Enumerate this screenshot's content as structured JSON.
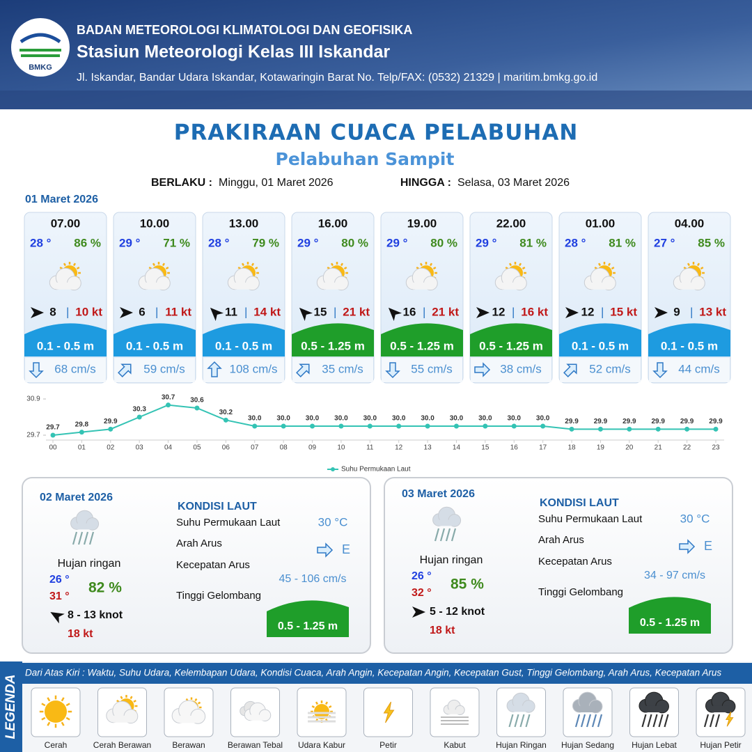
{
  "header": {
    "agency": "BADAN METEOROLOGI KLIMATOLOGI DAN GEOFISIKA",
    "station": "Stasiun Meteorologi Kelas III Iskandar",
    "address": "Jl. Iskandar, Bandar Udara Iskandar, Kotawaringin Barat No. Telp/FAX: (0532) 21329 | maritim.bmkg.go.id",
    "logo": "BMKG"
  },
  "title": "PRAKIRAAN CUACA PELABUHAN",
  "subtitle": "Pelabuhan Sampit",
  "validity": {
    "from_label": "BERLAKU :",
    "from": "Minggu, 01 Maret 2026",
    "to_label": "HINGGA :",
    "to": "Selasa, 03 Maret 2026"
  },
  "day1": {
    "date": "01 Maret 2026",
    "slots": [
      {
        "time": "07.00",
        "temp": "28 °",
        "humidity": "86 %",
        "wind": "8",
        "gust": "10 kt",
        "wind_dir": 0,
        "wave": "0.1 - 0.5 m",
        "wave_color": "#1e9be0",
        "current": "68 cm/s",
        "current_dir": 90
      },
      {
        "time": "10.00",
        "temp": "29 °",
        "humidity": "71 %",
        "wind": "6",
        "gust": "11 kt",
        "wind_dir": 0,
        "wave": "0.1 - 0.5 m",
        "wave_color": "#1e9be0",
        "current": "59 cm/s",
        "current_dir": -45
      },
      {
        "time": "13.00",
        "temp": "28 °",
        "humidity": "79 %",
        "wind": "11",
        "gust": "14 kt",
        "wind_dir": -135,
        "wave": "0.1 - 0.5 m",
        "wave_color": "#1e9be0",
        "current": "108 cm/s",
        "current_dir": -90
      },
      {
        "time": "16.00",
        "temp": "29 °",
        "humidity": "80 %",
        "wind": "15",
        "gust": "21 kt",
        "wind_dir": -135,
        "wave": "0.5 - 1.25 m",
        "wave_color": "#1f9e2a",
        "current": "35 cm/s",
        "current_dir": -45
      },
      {
        "time": "19.00",
        "temp": "29 °",
        "humidity": "80 %",
        "wind": "16",
        "gust": "21 kt",
        "wind_dir": -135,
        "wave": "0.5 - 1.25 m",
        "wave_color": "#1f9e2a",
        "current": "55 cm/s",
        "current_dir": 90
      },
      {
        "time": "22.00",
        "temp": "29 °",
        "humidity": "81 %",
        "wind": "12",
        "gust": "16 kt",
        "wind_dir": 0,
        "wave": "0.5 - 1.25 m",
        "wave_color": "#1f9e2a",
        "current": "38 cm/s",
        "current_dir": 0
      },
      {
        "time": "01.00",
        "temp": "28 °",
        "humidity": "81 %",
        "wind": "12",
        "gust": "15 kt",
        "wind_dir": 0,
        "wave": "0.1 - 0.5 m",
        "wave_color": "#1e9be0",
        "current": "52 cm/s",
        "current_dir": -45
      },
      {
        "time": "04.00",
        "temp": "27 °",
        "humidity": "85 %",
        "wind": "9",
        "gust": "13 kt",
        "wind_dir": 0,
        "wave": "0.1 - 0.5 m",
        "wave_color": "#1e9be0",
        "current": "44 cm/s",
        "current_dir": 90
      }
    ]
  },
  "chart_data": {
    "type": "line",
    "categories": [
      "00",
      "01",
      "02",
      "03",
      "04",
      "05",
      "06",
      "07",
      "08",
      "09",
      "10",
      "11",
      "12",
      "13",
      "14",
      "15",
      "16",
      "17",
      "18",
      "19",
      "20",
      "21",
      "22",
      "23"
    ],
    "series": [
      {
        "name": "Suhu Permukaan Laut",
        "color": "#34c3b4",
        "values": [
          29.7,
          29.8,
          29.9,
          30.3,
          30.7,
          30.6,
          30.2,
          30.0,
          30.0,
          30.0,
          30.0,
          30.0,
          30.0,
          30.0,
          30.0,
          30.0,
          30.0,
          30.0,
          29.9,
          29.9,
          29.9,
          29.9,
          29.9,
          29.9
        ],
        "value_labels": [
          "29.7",
          "29.8",
          "29.9",
          "30.3",
          "30.7",
          "30.6",
          "30.2",
          "30.0",
          "30.0",
          "30.0",
          "30.0",
          "30.0",
          "30.0",
          "30.0",
          "30.0",
          "30.0",
          "30.0",
          "30.0",
          "29.9",
          "29.9",
          "29.9",
          "29.9",
          "29.9",
          "29.9"
        ]
      }
    ],
    "ylim": [
      29.7,
      30.9
    ],
    "yticks": [
      29.7,
      30.9
    ],
    "legend": "bottom"
  },
  "panels": [
    {
      "date": "02 Maret 2026",
      "condition": "Hujan ringan",
      "temp_min": "26 °",
      "temp_max": "31 °",
      "humidity": "82 %",
      "wind": "8  - 13 knot",
      "wind_dir": -150,
      "gust": "18 kt",
      "sea_title": "KONDISI LAUT",
      "sst_label": "Suhu Permukaan Laut",
      "sst": "30 °C",
      "current_dir_label": "Arah Arus",
      "current_dir": "E",
      "current_speed_label": "Kecepatan Arus",
      "current_speed": "45  - 106 cm/s",
      "wave_label": "Tinggi Gelombang",
      "wave": "0.5 - 1.25 m"
    },
    {
      "date": "03 Maret 2026",
      "condition": "Hujan ringan",
      "temp_min": "26 °",
      "temp_max": "32 °",
      "humidity": "85 %",
      "wind": "5  - 12 knot",
      "wind_dir": 0,
      "gust": "18 kt",
      "sea_title": "KONDISI LAUT",
      "sst_label": "Suhu Permukaan Laut",
      "sst": "30 °C",
      "current_dir_label": "Arah Arus",
      "current_dir": "E",
      "current_speed_label": "Kecepatan Arus",
      "current_speed": "34 - 97 cm/s",
      "wave_label": "Tinggi Gelombang",
      "wave": "0.5 - 1.25 m"
    }
  ],
  "legend": {
    "title": "LEGENDA",
    "description": "Dari Atas Kiri : Waktu, Suhu Udara, Kelembapan Udara, Kondisi Cuaca, Arah Angin, Kecepatan Angin, Kecepatan Gust, Tinggi Gelombang, Arah Arus, Kecepatan Arus",
    "items": [
      "Cerah",
      "Cerah Berawan",
      "Berawan",
      "Berawan Tebal",
      "Udara Kabur",
      "Petir",
      "Kabut",
      "Hujan Ringan",
      "Hujan Sedang",
      "Hujan Lebat",
      "Hujan Petir"
    ]
  }
}
